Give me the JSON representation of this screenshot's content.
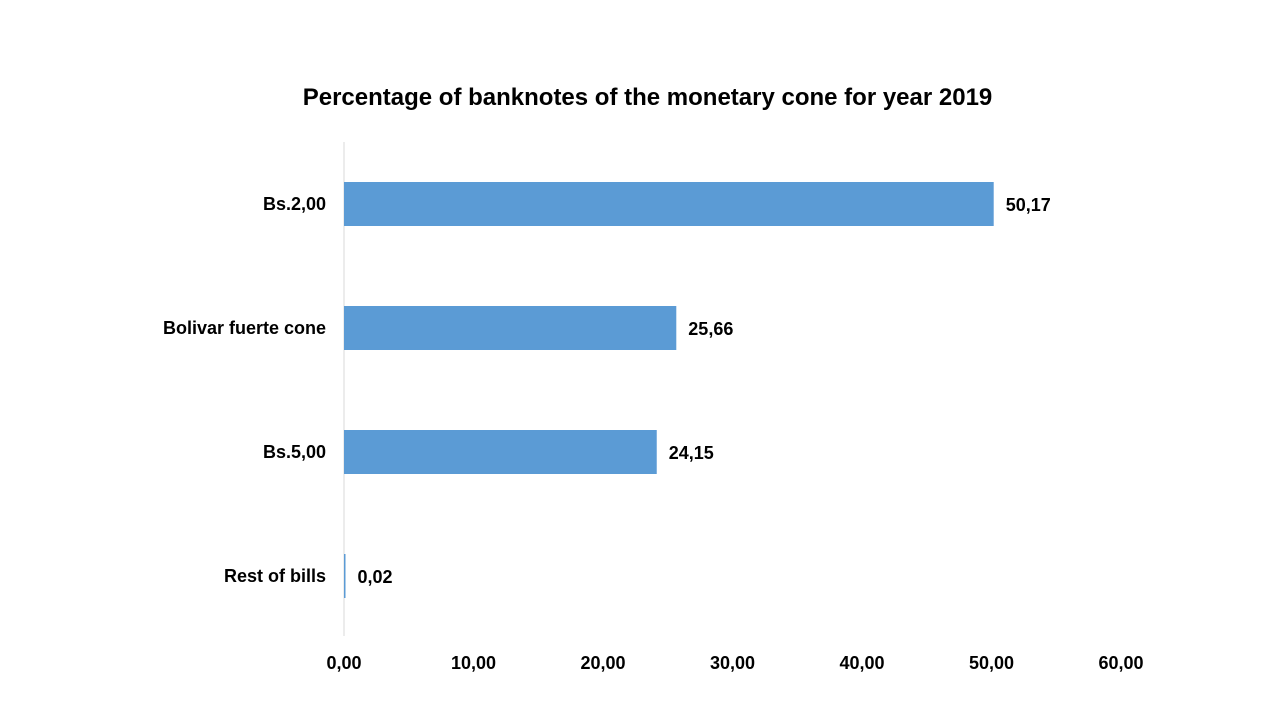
{
  "chart_data": {
    "type": "bar",
    "orientation": "horizontal",
    "title": "Percentage of banknotes of the monetary cone for year 2019",
    "categories": [
      "Bs.2,00",
      "Bolivar fuerte cone",
      "Bs.5,00",
      "Rest of bills"
    ],
    "values": [
      50.17,
      25.66,
      24.15,
      0.02
    ],
    "value_labels": [
      "50,17",
      "25,66",
      "24,15",
      "0,02"
    ],
    "xlim": [
      0,
      60
    ],
    "x_ticks": [
      0,
      10,
      20,
      30,
      40,
      50,
      60
    ],
    "x_tick_labels": [
      "0,00",
      "10,00",
      "20,00",
      "30,00",
      "40,00",
      "50,00",
      "60,00"
    ],
    "xlabel": "",
    "ylabel": "",
    "grid": false,
    "legend": "none",
    "bar_color": "#5B9BD5",
    "axis_color": "#D9D9D9"
  }
}
